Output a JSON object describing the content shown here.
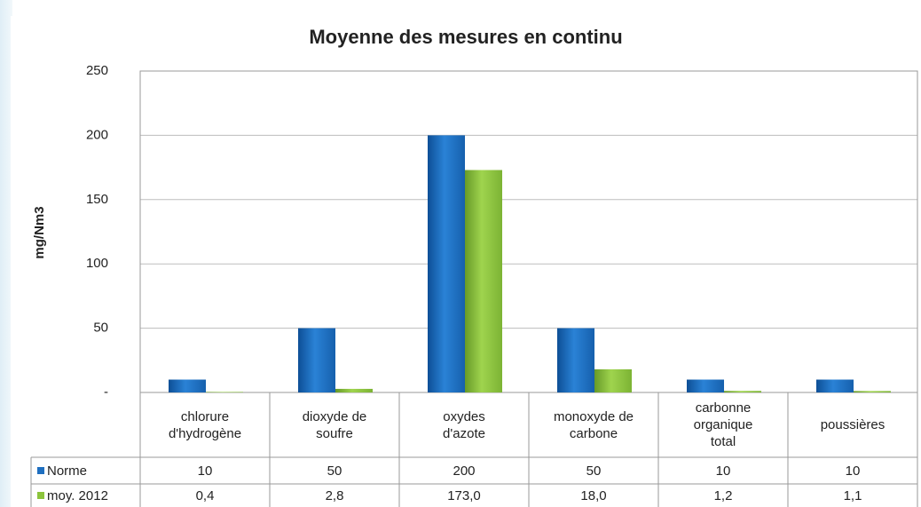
{
  "chart_data": {
    "type": "bar",
    "title": "Moyenne des mesures en continu",
    "y_label": "mg/Nm3",
    "categories": [
      "chlorure d'hydrogène",
      "dioxyde de soufre",
      "oxydes d'azote",
      "monoxyde de carbone",
      "carbonne organique total",
      "poussières"
    ],
    "series": [
      {
        "name": "Norme",
        "color": "#1f6fc0",
        "values": [
          10,
          50,
          200,
          50,
          10,
          10
        ]
      },
      {
        "name": "moy. 2012",
        "color": "#8cc43c",
        "values": [
          0.4,
          2.8,
          173.0,
          18.0,
          1.2,
          1.1
        ],
        "value_labels": [
          "0,4",
          "2,8",
          "173,0",
          "18,0",
          "1,2",
          "1,1"
        ]
      }
    ],
    "ylim": [
      0,
      250
    ],
    "yticks": [
      {
        "value": 0,
        "label": "-"
      },
      50,
      100,
      150,
      200,
      250
    ],
    "grid": true
  }
}
